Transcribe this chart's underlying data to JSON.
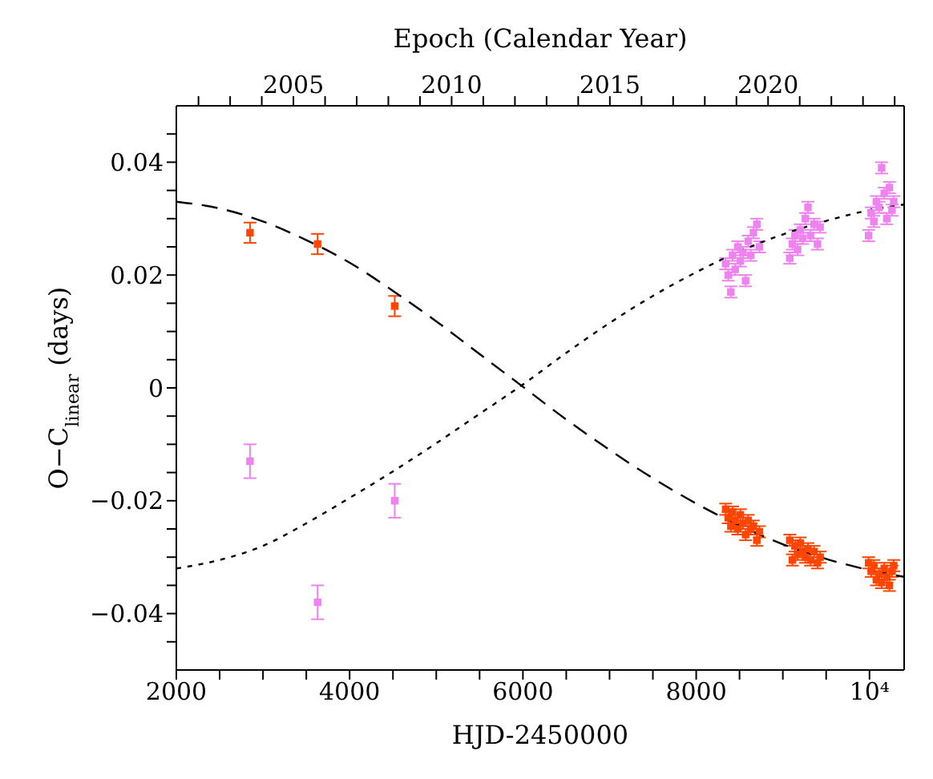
{
  "chart_data": {
    "type": "scatter",
    "xlabel": "HJD-2450000",
    "ylabel": "O−C$_{linear}$ (days)",
    "x2label": "Epoch (Calendar Year)",
    "xlim": [
      2000,
      10400
    ],
    "xticks": [
      2000,
      {
        "value": 2500,
        "label": null
      },
      {
        "value": 3000,
        "label": null
      },
      {
        "value": 3500,
        "label": null
      },
      4000,
      {
        "value": 4500,
        "label": null
      },
      {
        "value": 5000,
        "label": null
      },
      {
        "value": 5500,
        "label": null
      },
      6000,
      {
        "value": 6500,
        "label": null
      },
      {
        "value": 7000,
        "label": null
      },
      {
        "value": 7500,
        "label": null
      },
      8000,
      {
        "value": 8500,
        "label": null
      },
      {
        "value": 9000,
        "label": null
      },
      {
        "value": 9500,
        "label": null
      },
      {
        "value": 10000,
        "label": "10⁴"
      }
    ],
    "x2lim": [
      2001.3,
      2024.3
    ],
    "x2ticks": [
      {
        "value": 2002,
        "label": null
      },
      {
        "value": 2003,
        "label": null
      },
      {
        "value": 2004,
        "label": null
      },
      2005,
      {
        "value": 2006,
        "label": null
      },
      {
        "value": 2007,
        "label": null
      },
      {
        "value": 2008,
        "label": null
      },
      {
        "value": 2009,
        "label": null
      },
      2010,
      {
        "value": 2011,
        "label": null
      },
      {
        "value": 2012,
        "label": null
      },
      {
        "value": 2013,
        "label": null
      },
      {
        "value": 2014,
        "label": null
      },
      2015,
      {
        "value": 2016,
        "label": null
      },
      {
        "value": 2017,
        "label": null
      },
      {
        "value": 2018,
        "label": null
      },
      {
        "value": 2019,
        "label": null
      },
      2020,
      {
        "value": 2021,
        "label": null
      },
      {
        "value": 2022,
        "label": null
      },
      {
        "value": 2023,
        "label": null
      },
      {
        "value": 2024,
        "label": null
      }
    ],
    "ylim": [
      -0.05,
      0.05
    ],
    "yticks": [
      {
        "value": -0.045,
        "label": null
      },
      -0.04,
      {
        "value": -0.035,
        "label": null
      },
      {
        "value": -0.03,
        "label": null
      },
      {
        "value": -0.025,
        "label": null
      },
      -0.02,
      {
        "value": -0.015,
        "label": null
      },
      {
        "value": -0.01,
        "label": null
      },
      {
        "value": -0.005,
        "label": null
      },
      0,
      {
        "value": 0.005,
        "label": null
      },
      {
        "value": 0.01,
        "label": null
      },
      {
        "value": 0.015,
        "label": null
      },
      0.02,
      {
        "value": 0.025,
        "label": null
      },
      {
        "value": 0.03,
        "label": null
      },
      {
        "value": 0.035,
        "label": null
      },
      0.04,
      {
        "value": 0.045,
        "label": null
      }
    ],
    "marker": "square",
    "series": [
      {
        "color": "#ff4500",
        "x": [
          2850,
          3630,
          4520,
          8340,
          8370,
          8400,
          8420,
          8450,
          8480,
          8510,
          8540,
          8570,
          8600,
          8630,
          8660,
          8700,
          8730,
          9080,
          9110,
          9140,
          9170,
          9200,
          9230,
          9260,
          9290,
          9320,
          9360,
          9400,
          9430,
          9990,
          10020,
          10050,
          10080,
          10110,
          10140,
          10170,
          10200,
          10230,
          10260,
          10280
        ],
        "values": [
          0.0275,
          0.0255,
          0.0145,
          -0.0215,
          -0.023,
          -0.0245,
          -0.022,
          -0.0235,
          -0.025,
          -0.0225,
          -0.024,
          -0.026,
          -0.0235,
          -0.025,
          -0.0245,
          -0.027,
          -0.0255,
          -0.027,
          -0.0305,
          -0.028,
          -0.0295,
          -0.0275,
          -0.029,
          -0.03,
          -0.0285,
          -0.0305,
          -0.029,
          -0.031,
          -0.03,
          -0.031,
          -0.0325,
          -0.0315,
          -0.034,
          -0.033,
          -0.0345,
          -0.032,
          -0.0335,
          -0.035,
          -0.0325,
          -0.0315
        ],
        "errors": [
          0.0018,
          0.0018,
          0.0018,
          0.001,
          0.001,
          0.001,
          0.001,
          0.001,
          0.001,
          0.001,
          0.001,
          0.001,
          0.001,
          0.001,
          0.001,
          0.001,
          0.001,
          0.001,
          0.001,
          0.001,
          0.001,
          0.001,
          0.001,
          0.001,
          0.001,
          0.001,
          0.001,
          0.001,
          0.001,
          0.001,
          0.001,
          0.001,
          0.001,
          0.001,
          0.001,
          0.001,
          0.001,
          0.001,
          0.001,
          0.001
        ]
      },
      {
        "color": "#ee82ee",
        "x": [
          2850,
          3630,
          4520,
          8340,
          8370,
          8400,
          8420,
          8450,
          8480,
          8510,
          8540,
          8570,
          8600,
          8630,
          8660,
          8700,
          8730,
          9080,
          9110,
          9140,
          9170,
          9200,
          9230,
          9260,
          9290,
          9320,
          9360,
          9400,
          9430,
          9990,
          10020,
          10050,
          10080,
          10110,
          10140,
          10170,
          10200,
          10230,
          10260,
          10280
        ],
        "values": [
          -0.013,
          -0.038,
          -0.02,
          0.022,
          0.02,
          0.017,
          0.0235,
          0.021,
          0.025,
          0.0225,
          0.024,
          0.019,
          0.026,
          0.0235,
          0.0275,
          0.029,
          0.025,
          0.023,
          0.0255,
          0.027,
          0.0245,
          0.028,
          0.0265,
          0.03,
          0.032,
          0.027,
          0.029,
          0.0255,
          0.0285,
          0.027,
          0.031,
          0.0295,
          0.033,
          0.032,
          0.039,
          0.0345,
          0.03,
          0.0355,
          0.0315,
          0.033
        ],
        "errors": [
          0.003,
          0.003,
          0.003,
          0.001,
          0.001,
          0.001,
          0.001,
          0.001,
          0.001,
          0.001,
          0.001,
          0.001,
          0.001,
          0.001,
          0.001,
          0.001,
          0.001,
          0.001,
          0.001,
          0.001,
          0.001,
          0.001,
          0.001,
          0.001,
          0.001,
          0.001,
          0.001,
          0.001,
          0.001,
          0.001,
          0.001,
          0.001,
          0.001,
          0.001,
          0.001,
          0.001,
          0.001,
          0.001,
          0.001,
          0.001
        ]
      },
      {
        "type": "line",
        "color": "#000000",
        "line_style": "dashed",
        "marker": "none",
        "x": [
          2000,
          2500,
          3000,
          3500,
          4000,
          4500,
          5000,
          5500,
          6000,
          6500,
          7000,
          7500,
          8000,
          8500,
          9000,
          9500,
          10000,
          10400
        ],
        "values": [
          0.033,
          0.0318,
          0.0295,
          0.0262,
          0.0222,
          0.0172,
          0.0118,
          0.006,
          0.0002,
          -0.0056,
          -0.011,
          -0.016,
          -0.0205,
          -0.0244,
          -0.0277,
          -0.0303,
          -0.0323,
          -0.0335
        ]
      },
      {
        "type": "line",
        "color": "#000000",
        "line_style": "dotted",
        "marker": "none",
        "x": [
          2000,
          2500,
          3000,
          3500,
          4000,
          4500,
          5000,
          5500,
          6000,
          6500,
          7000,
          7500,
          8000,
          8500,
          9000,
          9500,
          10000,
          10400
        ],
        "values": [
          -0.032,
          -0.0305,
          -0.028,
          -0.024,
          -0.0195,
          -0.0148,
          -0.0098,
          -0.0046,
          0.0006,
          0.0062,
          0.0115,
          0.0163,
          0.0205,
          0.0242,
          0.0272,
          0.0296,
          0.0315,
          0.0325
        ]
      }
    ]
  }
}
